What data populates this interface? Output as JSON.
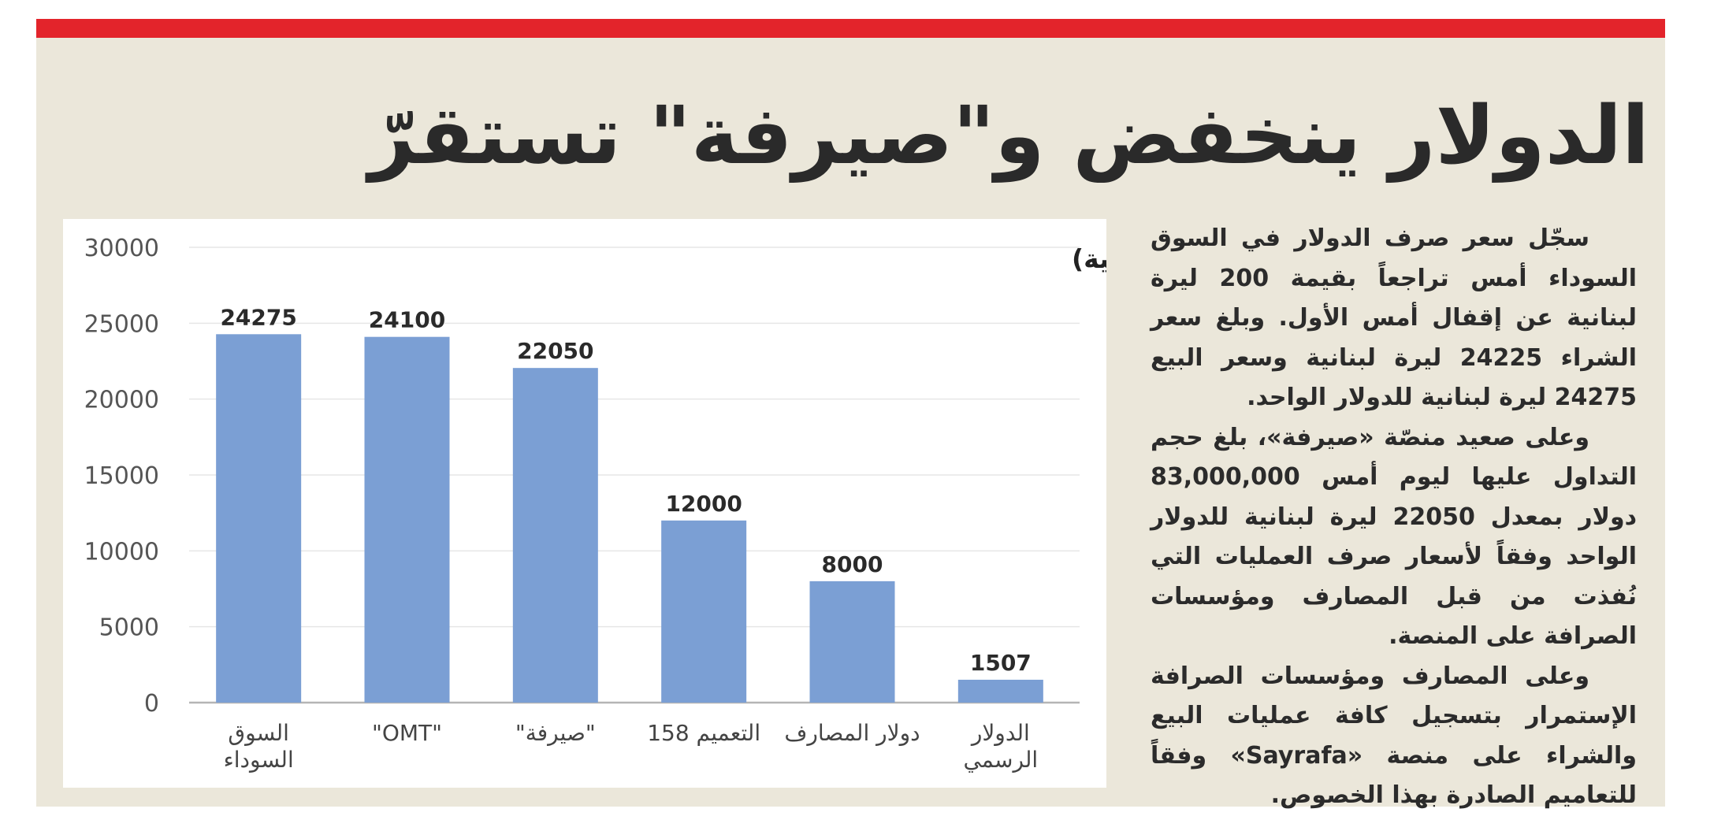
{
  "article": {
    "headline": "الدولار ينخفض و\"صيرفة\" تستقرّ",
    "paragraphs": [
      "سجّل سعر صرف الدولار في السوق السوداء أمس تراجعاً بقيمة 200 ليرة لبنانية عن إقفال أمس الأول. وبلغ سعر الشراء 24225 ليرة لبنانية وسعر البيع 24275 ليرة لبنانية للدولار الواحد.",
      "وعلى صعيد منصّة «صيرفة»، بلغ حجم التداول عليها ليوم أمس 83,000,000 دولار بمعدل 22050 ليرة لبنانية للدولار الواحد وفقاً لأسعار صرف العمليات التي نُفذت من قبل المصارف ومؤسسات الصرافة على المنصة.",
      "وعلى المصارف ومؤسسات الصرافة الإستمرار بتسجيل كافة عمليات البيع والشراء على منصة «Sayrafa» وفقاً للتعاميم الصادرة بهذا الخصوص."
    ]
  },
  "colors": {
    "accent_bar": "#e3242b",
    "panel": "#ebe7da",
    "bar_fill": "#7b9fd4",
    "text": "#2a2a2a"
  },
  "chart_data": {
    "type": "bar",
    "unit_label": "(بالليرة اللبنانية)",
    "categories": [
      "السوق السوداء",
      "\"OMT\"",
      "\"صيرفة\"",
      "التعميم 158",
      "دولار المصارف",
      "الدولار الرسمي"
    ],
    "category_lines": [
      [
        "السوق",
        "السوداء"
      ],
      [
        "\"OMT\""
      ],
      [
        "\"صيرفة\""
      ],
      [
        "التعميم 158"
      ],
      [
        "دولار المصارف"
      ],
      [
        "الدولار",
        "الرسمي"
      ]
    ],
    "values": [
      24275,
      24100,
      22050,
      12000,
      8000,
      1507
    ],
    "yticks": [
      0,
      5000,
      10000,
      15000,
      20000,
      25000,
      30000
    ],
    "ylim": [
      0,
      30000
    ],
    "grid": true,
    "data_labels": true
  }
}
